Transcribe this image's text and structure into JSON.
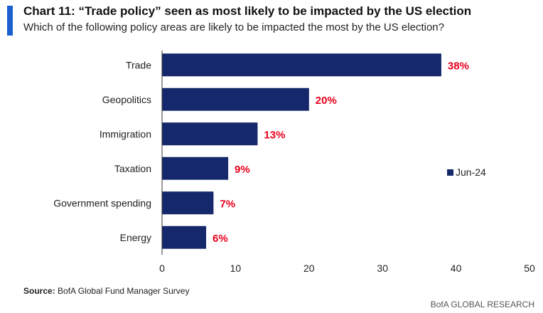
{
  "header": {
    "title": "Chart 11: “Trade policy” seen as most likely to be impacted by the US election",
    "subtitle": "Which of the following policy areas are likely to be impacted the most by the US election?"
  },
  "footer": {
    "source_label": "Source:",
    "source_text": "BofA Global Fund Manager Survey",
    "brand": "BofA GLOBAL RESEARCH"
  },
  "colors": {
    "bar": "#14286b",
    "value_label": "#e8001c",
    "accent": "#1a5fd0"
  },
  "chart_data": {
    "type": "bar",
    "orientation": "horizontal",
    "title": "Chart 11: “Trade policy” seen as most likely to be impacted by the US election",
    "subtitle": "Which of the following policy areas are likely to be impacted the most by the US election?",
    "categories": [
      "Trade",
      "Geopolitics",
      "Immigration",
      "Taxation",
      "Government spending",
      "Energy"
    ],
    "series": [
      {
        "name": "Jun-24",
        "values": [
          38,
          20,
          13,
          9,
          7,
          6
        ]
      }
    ],
    "value_labels": [
      "38%",
      "20%",
      "13%",
      "9%",
      "7%",
      "6%"
    ],
    "xlim": [
      0,
      50
    ],
    "xticks": [
      "0",
      "10",
      "20",
      "30",
      "40",
      "50"
    ],
    "grid": false,
    "legend": "right"
  }
}
